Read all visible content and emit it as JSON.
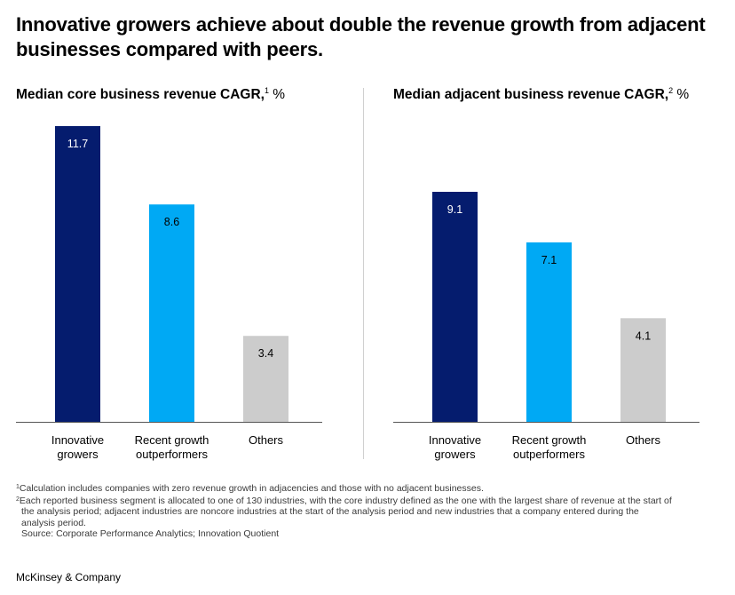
{
  "headline": "Innovative growers achieve about double the revenue growth from adjacent businesses compared with peers.",
  "colors": {
    "innovative": "#051c6e",
    "recent": "#00a9f4",
    "others": "#cccccc",
    "axis": "#555555"
  },
  "chart_data": [
    {
      "type": "bar",
      "title": "Median core business revenue CAGR,",
      "title_sup": "1",
      "title_unit": "%",
      "categories": [
        [
          "Innovative",
          "growers"
        ],
        [
          "Recent growth",
          "outperformers"
        ],
        [
          "Others"
        ]
      ],
      "values": [
        11.7,
        8.6,
        3.4
      ],
      "value_labels": [
        "11.7",
        "8.6",
        "3.4"
      ],
      "ylim": [
        0,
        11.7
      ]
    },
    {
      "type": "bar",
      "title": "Median adjacent business revenue CAGR,",
      "title_sup": "2",
      "title_unit": "%",
      "categories": [
        [
          "Innovative",
          "growers"
        ],
        [
          "Recent growth",
          "outperformers"
        ],
        [
          "Others"
        ]
      ],
      "values": [
        9.1,
        7.1,
        4.1
      ],
      "value_labels": [
        "9.1",
        "7.1",
        "4.1"
      ],
      "ylim": [
        0,
        11.7
      ]
    }
  ],
  "footnotes": {
    "n1_mark": "1",
    "n1": "Calculation includes companies with zero revenue growth in adjacencies and those with no adjacent businesses.",
    "n2_mark": "2",
    "n2_line1": "Each reported business segment is allocated to one of 130 industries, with the core industry defined as the one with the largest share of revenue at the start of",
    "n2_line2": "the analysis period; adjacent industries are noncore industries at the start of the analysis period and new industries that a company entered during the",
    "n2_line3": "analysis period.",
    "source": "Source: Corporate Performance Analytics; Innovation Quotient"
  },
  "brand": "McKinsey & Company"
}
